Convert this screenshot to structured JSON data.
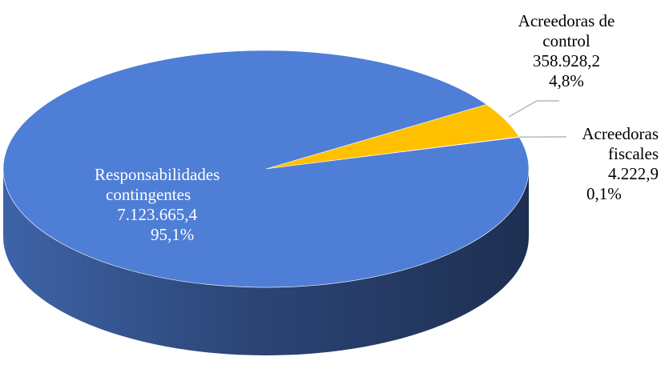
{
  "chart_data": {
    "type": "pie",
    "style": "3d",
    "slices": [
      {
        "name": "Responsabilidades contingentes",
        "label_line1": "Responsabilidades",
        "label_line2": "contingentes",
        "value": 7123665.4,
        "value_label": "7.123.665,4",
        "percent": 95.1,
        "percent_label": "95,1%",
        "color": "#4F7ED6"
      },
      {
        "name": "Acreedoras de control",
        "label_line1": "Acreedoras de",
        "label_line2": "control",
        "value": 358928.2,
        "value_label": "358.928,2",
        "percent": 4.8,
        "percent_label": "4,8%",
        "color": "#FFC000"
      },
      {
        "name": "Acreedoras fiscales",
        "label_line1": "Acreedoras",
        "label_line2": "fiscales",
        "value": 4222.9,
        "value_label": "4.222,9",
        "percent": 0.1,
        "percent_label": "0,1%",
        "color": "#A5A5A5"
      }
    ]
  }
}
